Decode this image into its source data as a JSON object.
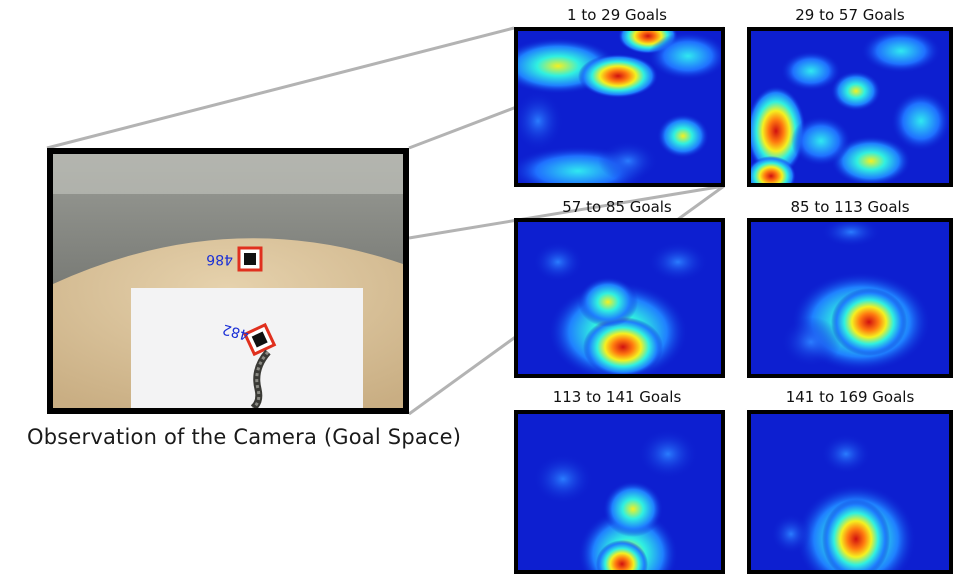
{
  "caption": "Observation of the Camera (Goal Space)",
  "marker_labels": [
    "486",
    "482"
  ],
  "panels": [
    {
      "title": "1 to 29 Goals"
    },
    {
      "title": "29 to 57 Goals"
    },
    {
      "title": "57 to 85 Goals"
    },
    {
      "title": "85 to 113 Goals"
    },
    {
      "title": "113 to 141 Goals"
    },
    {
      "title": "141 to 169 Goals"
    }
  ],
  "colors": {
    "frame": "#000000",
    "connector": "#b3b3b3",
    "heatmap_background": "#0d1fd0",
    "marker_text": "#1a2fd6",
    "marker_border": "#e0301e"
  }
}
